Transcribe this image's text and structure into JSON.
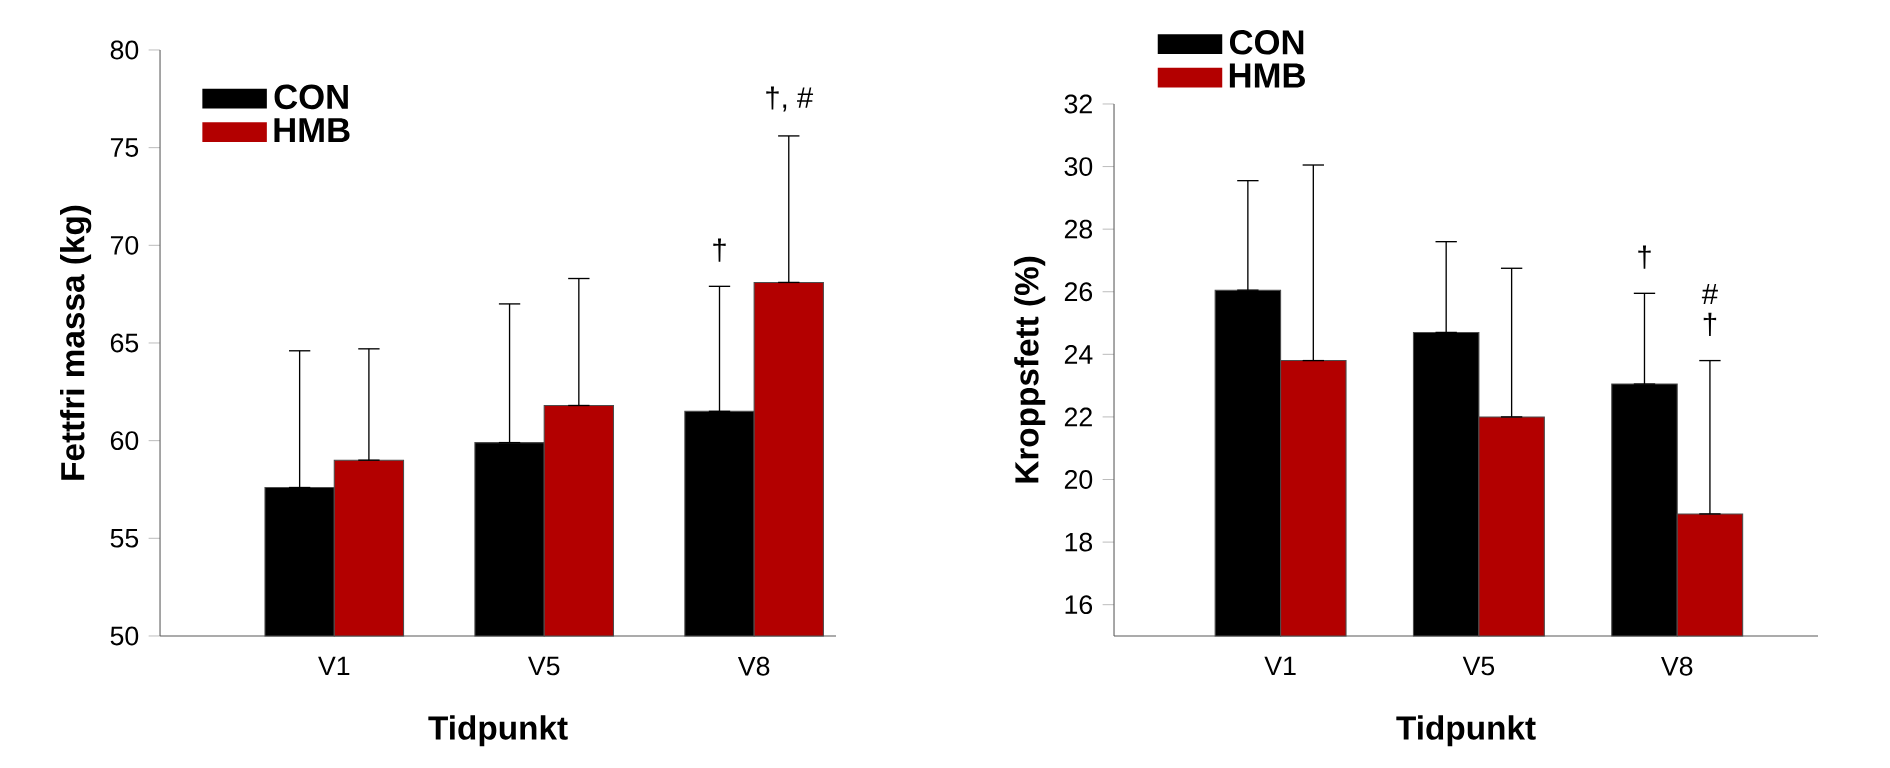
{
  "chart_data": [
    {
      "type": "bar",
      "xlabel": "Tidpunkt",
      "ylabel": "Fettfri massa (kg)",
      "categories": [
        "V1",
        "V5",
        "V8"
      ],
      "series": [
        {
          "name": "CON",
          "color": "#000000",
          "values": [
            57.6,
            59.9,
            61.5
          ],
          "errors": [
            [
              57.6,
              64.6
            ],
            [
              59.9,
              67.0
            ],
            [
              61.5,
              67.9
            ]
          ]
        },
        {
          "name": "HMB",
          "color": "#b30000",
          "values": [
            59.0,
            61.8,
            68.1
          ],
          "errors": [
            [
              59.0,
              64.7
            ],
            [
              61.8,
              68.3
            ],
            [
              68.1,
              75.6
            ]
          ]
        }
      ],
      "ylim": [
        50,
        80
      ],
      "yticks": [
        50,
        55,
        60,
        65,
        70,
        75,
        80
      ],
      "legend": "top left",
      "annotations": [
        "†",
        "†, #"
      ]
    },
    {
      "type": "bar",
      "xlabel": "Tidpunkt",
      "ylabel": "Kroppsfett (%)",
      "categories": [
        "V1",
        "V5",
        "V8"
      ],
      "series": [
        {
          "name": "CON",
          "color": "#000000",
          "values": [
            26.05,
            24.7,
            23.05
          ],
          "errors": [
            [
              26.05,
              29.55
            ],
            [
              24.7,
              27.6
            ],
            [
              23.05,
              25.95
            ]
          ]
        },
        {
          "name": "HMB",
          "color": "#b30000",
          "values": [
            23.8,
            22.0,
            18.9
          ],
          "errors": [
            [
              23.8,
              30.05
            ],
            [
              22.0,
              26.75
            ],
            [
              18.9,
              23.8
            ]
          ]
        }
      ],
      "ylim": [
        15,
        32
      ],
      "yticks": [
        16,
        18,
        20,
        22,
        24,
        26,
        28,
        30,
        32
      ],
      "legend": "top left",
      "annotations": [
        "†",
        "†",
        "#"
      ]
    }
  ]
}
